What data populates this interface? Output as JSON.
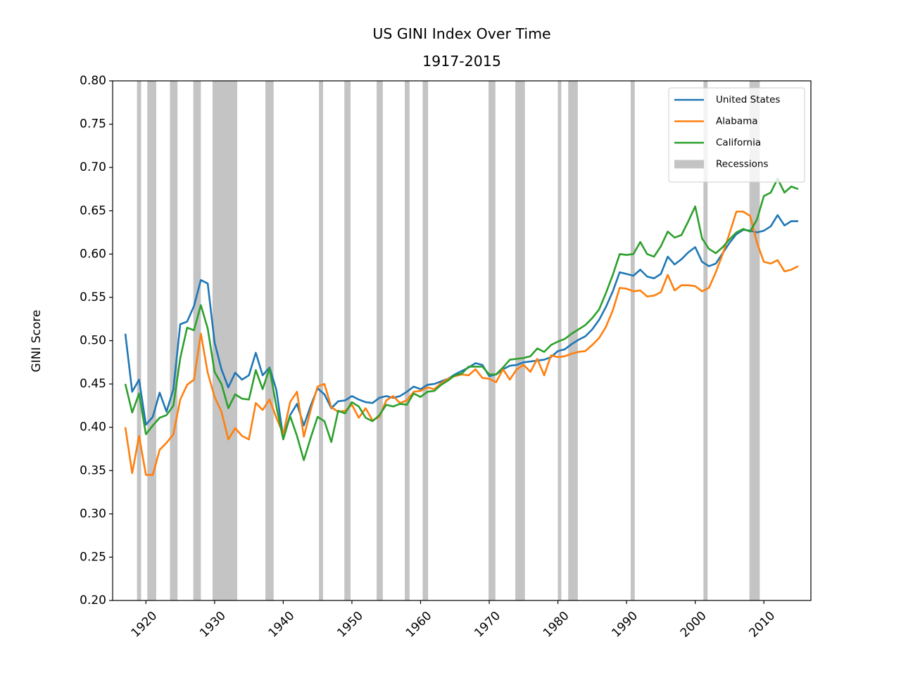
{
  "chart_data": {
    "type": "line",
    "title": "US GINI Index Over Time",
    "subtitle": "1917-2015",
    "y_label": "GINI Score",
    "x": [
      1917,
      1918,
      1919,
      1920,
      1921,
      1922,
      1923,
      1924,
      1925,
      1926,
      1927,
      1928,
      1929,
      1930,
      1931,
      1932,
      1933,
      1934,
      1935,
      1936,
      1937,
      1938,
      1939,
      1940,
      1941,
      1942,
      1943,
      1944,
      1945,
      1946,
      1947,
      1948,
      1949,
      1950,
      1951,
      1952,
      1953,
      1954,
      1955,
      1956,
      1957,
      1958,
      1959,
      1960,
      1961,
      1962,
      1963,
      1964,
      1965,
      1966,
      1967,
      1968,
      1969,
      1970,
      1971,
      1972,
      1973,
      1974,
      1975,
      1976,
      1977,
      1978,
      1979,
      1980,
      1981,
      1982,
      1983,
      1984,
      1985,
      1986,
      1987,
      1988,
      1989,
      1990,
      1991,
      1992,
      1993,
      1994,
      1995,
      1996,
      1997,
      1998,
      1999,
      2000,
      2001,
      2002,
      2003,
      2004,
      2005,
      2006,
      2007,
      2008,
      2009,
      2010,
      2011,
      2012,
      2013,
      2014,
      2015
    ],
    "series": [
      {
        "name": "United States",
        "color": "#1f77b4",
        "values": [
          0.508,
          0.441,
          0.455,
          0.403,
          0.412,
          0.44,
          0.418,
          0.444,
          0.519,
          0.522,
          0.54,
          0.57,
          0.566,
          0.498,
          0.467,
          0.446,
          0.463,
          0.455,
          0.46,
          0.486,
          0.46,
          0.469,
          0.443,
          0.388,
          0.414,
          0.427,
          0.402,
          0.425,
          0.445,
          0.438,
          0.422,
          0.43,
          0.431,
          0.436,
          0.432,
          0.429,
          0.428,
          0.434,
          0.436,
          0.434,
          0.436,
          0.441,
          0.447,
          0.444,
          0.449,
          0.45,
          0.453,
          0.456,
          0.461,
          0.465,
          0.469,
          0.474,
          0.472,
          0.459,
          0.461,
          0.467,
          0.471,
          0.472,
          0.475,
          0.476,
          0.477,
          0.478,
          0.481,
          0.488,
          0.49,
          0.496,
          0.501,
          0.505,
          0.513,
          0.524,
          0.539,
          0.557,
          0.579,
          0.577,
          0.575,
          0.582,
          0.574,
          0.572,
          0.577,
          0.597,
          0.588,
          0.594,
          0.602,
          0.608,
          0.591,
          0.586,
          0.589,
          0.601,
          0.613,
          0.623,
          0.628,
          0.627,
          0.625,
          0.627,
          0.632,
          0.645,
          0.633,
          0.638,
          0.638
        ]
      },
      {
        "name": "Alabama",
        "color": "#ff7f0e",
        "values": [
          0.4,
          0.347,
          0.39,
          0.345,
          0.345,
          0.374,
          0.382,
          0.392,
          0.432,
          0.449,
          0.455,
          0.508,
          0.463,
          0.435,
          0.418,
          0.386,
          0.399,
          0.39,
          0.386,
          0.428,
          0.42,
          0.432,
          0.411,
          0.392,
          0.429,
          0.441,
          0.389,
          0.42,
          0.447,
          0.45,
          0.423,
          0.418,
          0.419,
          0.426,
          0.411,
          0.422,
          0.408,
          0.412,
          0.431,
          0.436,
          0.428,
          0.431,
          0.441,
          0.442,
          0.446,
          0.444,
          0.451,
          0.456,
          0.459,
          0.461,
          0.46,
          0.467,
          0.457,
          0.456,
          0.452,
          0.467,
          0.455,
          0.467,
          0.472,
          0.464,
          0.479,
          0.46,
          0.483,
          0.481,
          0.482,
          0.485,
          0.487,
          0.488,
          0.495,
          0.503,
          0.516,
          0.535,
          0.561,
          0.56,
          0.557,
          0.558,
          0.551,
          0.552,
          0.556,
          0.576,
          0.558,
          0.564,
          0.564,
          0.563,
          0.557,
          0.561,
          0.579,
          0.6,
          0.624,
          0.649,
          0.649,
          0.644,
          0.613,
          0.591,
          0.589,
          0.593,
          0.58,
          0.582,
          0.586
        ]
      },
      {
        "name": "California",
        "color": "#2ca02c",
        "values": [
          0.45,
          0.417,
          0.439,
          0.392,
          0.402,
          0.411,
          0.414,
          0.425,
          0.48,
          0.515,
          0.512,
          0.541,
          0.514,
          0.464,
          0.45,
          0.422,
          0.438,
          0.433,
          0.432,
          0.466,
          0.444,
          0.468,
          0.424,
          0.386,
          0.413,
          0.39,
          0.362,
          0.388,
          0.412,
          0.407,
          0.383,
          0.419,
          0.416,
          0.429,
          0.424,
          0.411,
          0.407,
          0.414,
          0.426,
          0.424,
          0.427,
          0.426,
          0.439,
          0.435,
          0.441,
          0.442,
          0.449,
          0.454,
          0.46,
          0.462,
          0.47,
          0.47,
          0.47,
          0.461,
          0.461,
          0.469,
          0.478,
          0.479,
          0.48,
          0.482,
          0.491,
          0.487,
          0.495,
          0.499,
          0.502,
          0.508,
          0.513,
          0.518,
          0.526,
          0.536,
          0.555,
          0.576,
          0.6,
          0.599,
          0.6,
          0.614,
          0.6,
          0.597,
          0.609,
          0.626,
          0.619,
          0.622,
          0.638,
          0.655,
          0.618,
          0.606,
          0.601,
          0.608,
          0.617,
          0.625,
          0.629,
          0.626,
          0.64,
          0.667,
          0.671,
          0.687,
          0.671,
          0.678,
          0.675
        ]
      }
    ],
    "recessions": {
      "name": "Recessions",
      "color": "#c4c4c4",
      "spans": [
        [
          1918.7,
          1919.3
        ],
        [
          1920.2,
          1921.5
        ],
        [
          1923.5,
          1924.6
        ],
        [
          1926.9,
          1928.0
        ],
        [
          1929.7,
          1933.3
        ],
        [
          1937.4,
          1938.6
        ],
        [
          1945.2,
          1945.8
        ],
        [
          1948.9,
          1949.8
        ],
        [
          1953.6,
          1954.5
        ],
        [
          1957.7,
          1958.4
        ],
        [
          1960.3,
          1961.1
        ],
        [
          1969.9,
          1970.9
        ],
        [
          1973.8,
          1975.2
        ],
        [
          1980.0,
          1980.5
        ],
        [
          1981.5,
          1982.9
        ],
        [
          1990.6,
          1991.2
        ],
        [
          2001.2,
          2001.8
        ],
        [
          2007.9,
          2009.4
        ]
      ]
    },
    "xlim": [
      1915.15,
      2016.85
    ],
    "ylim": [
      0.2,
      0.8
    ],
    "xticks": [
      1920,
      1930,
      1940,
      1950,
      1960,
      1970,
      1980,
      1990,
      2000,
      2010
    ],
    "yticks": [
      {
        "value": 0.2,
        "label": "0.20"
      },
      0.25,
      {
        "value": 0.3,
        "label": "0.30"
      },
      0.35,
      {
        "value": 0.4,
        "label": "0.40"
      },
      0.45,
      {
        "value": 0.5,
        "label": "0.50"
      },
      0.55,
      {
        "value": 0.6,
        "label": "0.60"
      },
      0.65,
      {
        "value": 0.7,
        "label": "0.70"
      },
      0.75,
      {
        "value": 0.8,
        "label": "0.80"
      }
    ],
    "legend": "upper right"
  }
}
